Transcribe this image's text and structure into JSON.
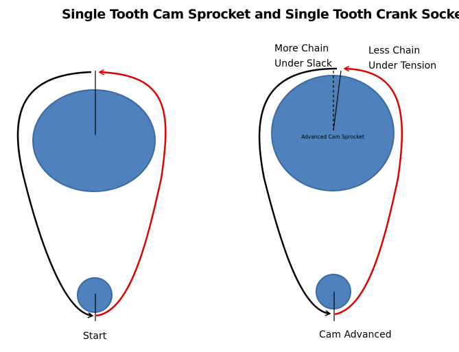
{
  "title": "Single Tooth Cam Sprocket  and Single Tooth Crank Socket",
  "left_diagram": {
    "label": "Start"
  },
  "right_diagram": {
    "label": "Cam Advanced",
    "slack_label_line1": "More Chain",
    "slack_label_line2": "Under Slack",
    "tension_label_line1": "Less Chain",
    "tension_label_line2": "Under Tension",
    "sprocket_label": "Advanced Cam Sprocket"
  },
  "colors": {
    "sprocket_fill": "#4f81bd",
    "sprocket_stroke": "#3a6aa2",
    "slack_chain": "#000000",
    "tension_chain": "#e00000"
  }
}
